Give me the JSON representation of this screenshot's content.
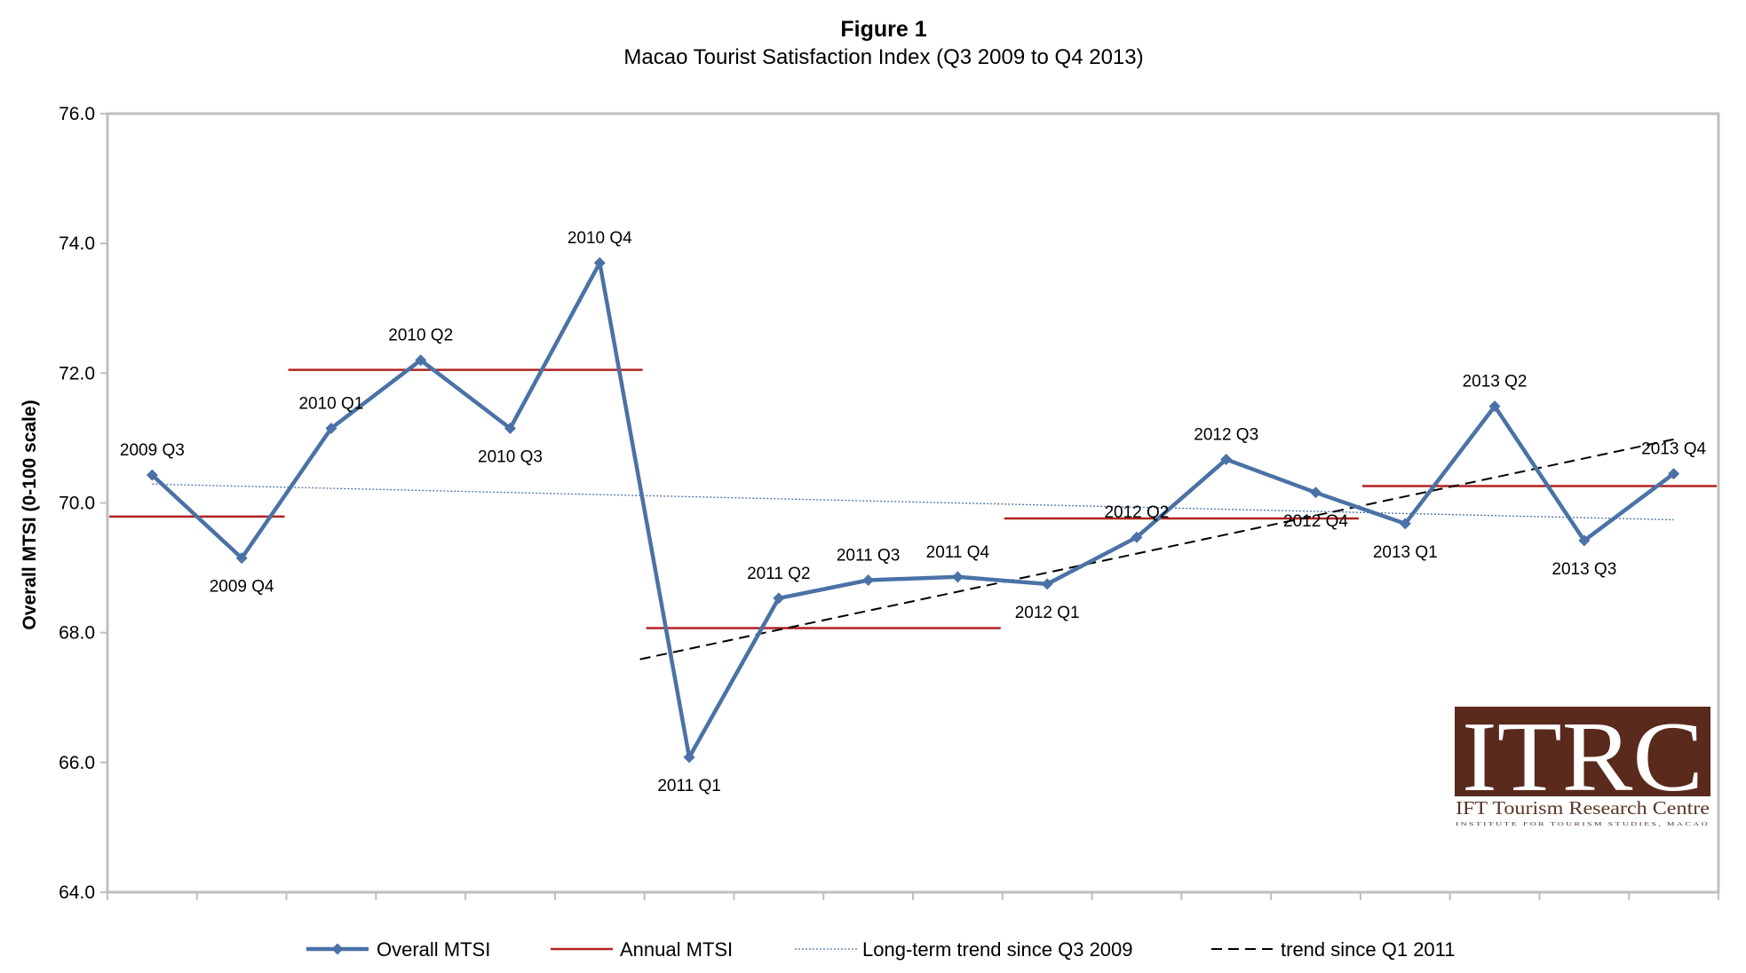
{
  "chart_data": {
    "type": "line",
    "title": "Figure 1",
    "subtitle": "Macao Tourist Satisfaction Index (Q3 2009 to Q4 2013)",
    "xlabel": "",
    "ylabel": "Overall MTSI (0-100 scale)",
    "ylim": [
      64.0,
      76.0
    ],
    "yticks": [
      "64.0",
      "66.0",
      "68.0",
      "70.0",
      "72.0",
      "74.0",
      "76.0"
    ],
    "grid": false,
    "legend_position": "bottom",
    "categories": [
      "2009 Q3",
      "2009 Q4",
      "2010 Q1",
      "2010 Q2",
      "2010 Q3",
      "2010 Q4",
      "2011 Q1",
      "2011 Q2",
      "2011 Q3",
      "2011 Q4",
      "2012 Q1",
      "2012 Q2",
      "2012 Q3",
      "2012 Q4",
      "2013 Q1",
      "2013 Q2",
      "2013 Q3",
      "2013 Q4"
    ],
    "series": [
      {
        "name": "Overall MTSI",
        "style": "solid-diamond",
        "color": "#4a72a6",
        "values": [
          70.43,
          69.15,
          71.15,
          72.2,
          71.15,
          73.7,
          66.08,
          68.53,
          68.81,
          68.86,
          68.75,
          69.47,
          70.67,
          70.16,
          69.68,
          71.49,
          69.42,
          70.45
        ]
      },
      {
        "name": "Annual MTSI",
        "style": "segments",
        "color": "#b22222",
        "segments": [
          {
            "from": "2009 Q3",
            "to": "2009 Q4",
            "value": 69.79
          },
          {
            "from": "2010 Q1",
            "to": "2010 Q4",
            "value": 72.05
          },
          {
            "from": "2011 Q1",
            "to": "2011 Q4",
            "value": 68.07
          },
          {
            "from": "2012 Q1",
            "to": "2012 Q4",
            "value": 69.76
          },
          {
            "from": "2013 Q1",
            "to": "2013 Q4",
            "value": 70.26
          }
        ]
      },
      {
        "name": "Long-term trend since Q3 2009",
        "style": "dotted",
        "color": "#4a72a6",
        "from": "2009 Q3",
        "to": "2013 Q4",
        "start": 70.29,
        "end": 69.74
      },
      {
        "name": "trend since Q1 2011",
        "style": "dashed",
        "color": "#000000",
        "from": "2011 Q1",
        "to": "2013 Q4",
        "start": 67.59,
        "end": 70.98
      }
    ]
  },
  "logo": {
    "text": "ITRC",
    "subtitle": "IFT Tourism Research Centre",
    "tagline": "INSTITUTE FOR TOURISM STUDIES, MACAO",
    "color": "#5a2a1c"
  }
}
